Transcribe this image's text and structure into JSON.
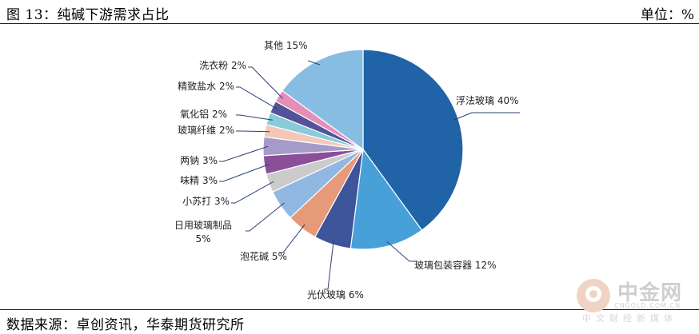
{
  "header": {
    "title": "图 13：纯碱下游需求占比",
    "unit": "单位：%"
  },
  "footer": {
    "source": "数据来源：卓创资讯，华泰期货研究所"
  },
  "watermark": {
    "name": "中金网",
    "url": "CNGOLD.COM.CN",
    "subtitle": "中文财经新媒体"
  },
  "chart_data": {
    "type": "pie",
    "title": "",
    "start": "12 o'clock",
    "direction": "clockwise",
    "slices": [
      {
        "label": "浮法玻璃",
        "value": 40,
        "color": "#2063a6",
        "label_text": "浮法玻璃 40%"
      },
      {
        "label": "玻璃包装容器",
        "value": 12,
        "color": "#48a0d8",
        "label_text": "玻璃包装容器 12%"
      },
      {
        "label": "光伏玻璃",
        "value": 6,
        "color": "#3e559c",
        "label_text": "光伏玻璃 6%"
      },
      {
        "label": "泡花碱",
        "value": 5,
        "color": "#e79a7a",
        "label_text": "泡花碱 5%"
      },
      {
        "label": "日用玻璃制品",
        "value": 5,
        "color": "#91b8e2",
        "label_lines": [
          "日用玻璃制品",
          "5%"
        ]
      },
      {
        "label": "小苏打",
        "value": 3,
        "color": "#cbcbcb",
        "label_text": "小苏打 3%"
      },
      {
        "label": "味精",
        "value": 3,
        "color": "#8b4f99",
        "label_text": "味精 3%"
      },
      {
        "label": "两钠",
        "value": 3,
        "color": "#a69ac9",
        "label_text": "两钠 3%"
      },
      {
        "label": "玻璃纤维",
        "value": 2,
        "color": "#f4c7b8",
        "label_text": "玻璃纤维 2%"
      },
      {
        "label": "氧化铝",
        "value": 2,
        "color": "#89cbd8",
        "label_text": "氧化铝 2%"
      },
      {
        "label": "精致盐水",
        "value": 2,
        "color": "#53529a",
        "label_text": "精致盐水 2%"
      },
      {
        "label": "洗衣粉",
        "value": 2,
        "color": "#e58fb8",
        "label_text": "洗衣粉 2%"
      },
      {
        "label": "其他",
        "value": 15,
        "color": "#88bde3",
        "label_text": "其他 15%"
      }
    ]
  }
}
